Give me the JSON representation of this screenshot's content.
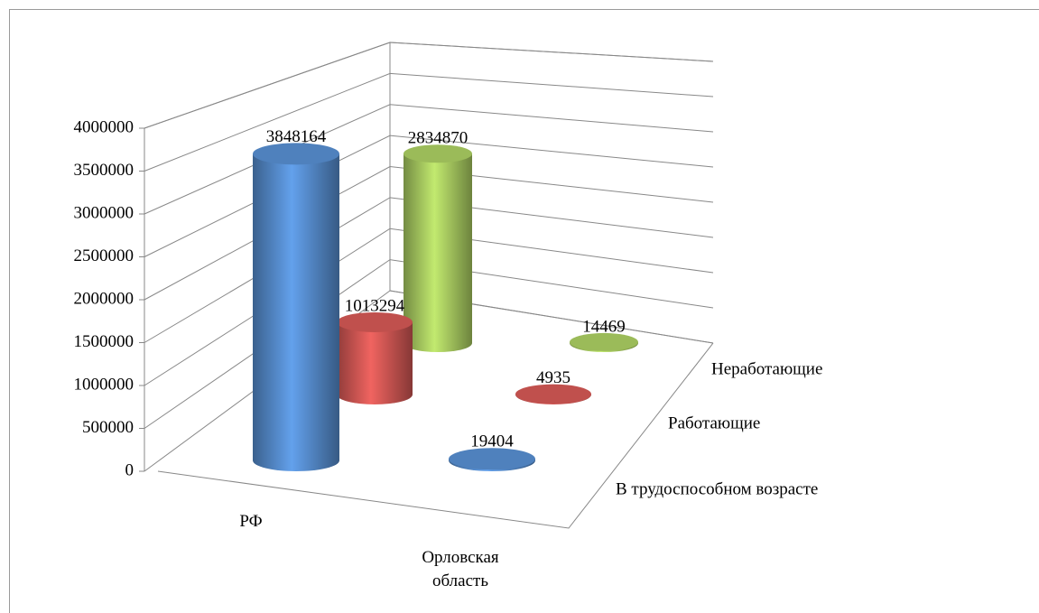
{
  "chart_data": {
    "type": "bar3d",
    "categories": [
      "РФ",
      "Орловская область"
    ],
    "series": [
      {
        "name": "В трудоспособном возрасте",
        "color": "#4f81bd",
        "values": [
          3848164,
          19404
        ]
      },
      {
        "name": "Работающие",
        "color": "#c0504d",
        "values": [
          1013294,
          4935
        ]
      },
      {
        "name": "Неработающие",
        "color": "#9bbb59",
        "values": [
          2834870,
          14469
        ]
      }
    ],
    "ylim": [
      0,
      4000000
    ],
    "yticks": [
      0,
      500000,
      1000000,
      1500000,
      2000000,
      2500000,
      3000000,
      3500000,
      4000000
    ],
    "grid": true
  }
}
